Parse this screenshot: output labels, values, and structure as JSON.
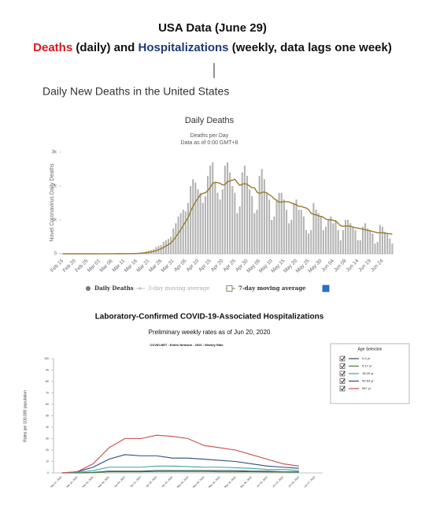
{
  "header": {
    "title": "USA Data (June 29)",
    "subtitle": [
      {
        "text": "Deaths",
        "color": "#d7191c"
      },
      {
        "text": " (daily) and ",
        "color": "#111111"
      },
      {
        "text": "Hospitalizations",
        "color": "#1f3a7a"
      },
      {
        "text": " (weekly, data lags one week)",
        "color": "#111111"
      }
    ]
  },
  "chart_data": [
    {
      "type": "bar",
      "section_title": "Daily New Deaths in the United States",
      "title": "Daily Deaths",
      "subtitle": "Deaths per Day",
      "note": "Data as of 0:00 GMT+8",
      "y_label": "Novel Coronavirus Daily Deaths",
      "ylim": [
        0,
        3000
      ],
      "yticks": [
        0,
        {
          "value": 1000,
          "label": "1k"
        },
        {
          "value": 2000,
          "label": "2k"
        },
        {
          "value": 3000,
          "label": "3k"
        }
      ],
      "categories": [
        "Feb 15",
        null,
        null,
        null,
        null,
        "Feb 20",
        null,
        null,
        null,
        null,
        "Feb 25",
        null,
        null,
        null,
        null,
        "Mar 01",
        null,
        null,
        null,
        null,
        "Mar 06",
        null,
        null,
        null,
        null,
        "Mar 11",
        null,
        null,
        null,
        null,
        "Mar 16",
        null,
        null,
        null,
        null,
        "Mar 21",
        null,
        null,
        null,
        null,
        "Mar 26",
        null,
        null,
        null,
        null,
        "Mar 31",
        null,
        null,
        null,
        null,
        "Apr 05",
        null,
        null,
        null,
        null,
        "Apr 10",
        null,
        null,
        null,
        null,
        "Apr 15",
        null,
        null,
        null,
        null,
        "Apr 20",
        null,
        null,
        null,
        null,
        "Apr 25",
        null,
        null,
        null,
        null,
        "Apr 30",
        null,
        null,
        null,
        null,
        "May 05",
        null,
        null,
        null,
        null,
        "May 10",
        null,
        null,
        null,
        null,
        "May 15",
        null,
        null,
        null,
        null,
        "May 20",
        null,
        null,
        null,
        null,
        "May 25",
        null,
        null,
        null,
        null,
        "May 30",
        null,
        null,
        null,
        null,
        "Jun 04",
        null,
        null,
        null,
        null,
        "Jun 09",
        null,
        null,
        null,
        null,
        "Jun 14",
        null,
        null,
        null,
        null,
        "Jun 19",
        null,
        null,
        null,
        null,
        "Jun 24",
        null,
        null,
        null,
        null
      ],
      "series": [
        {
          "name": "Daily Deaths",
          "mark": "bar",
          "color": "#b3b3b3",
          "values": [
            0,
            0,
            0,
            0,
            0,
            0,
            0,
            0,
            0,
            0,
            0,
            0,
            0,
            0,
            0,
            1,
            1,
            5,
            2,
            1,
            1,
            3,
            3,
            4,
            3,
            5,
            8,
            10,
            8,
            16,
            20,
            28,
            40,
            52,
            70,
            90,
            110,
            140,
            200,
            230,
            260,
            350,
            400,
            440,
            500,
            750,
            900,
            1100,
            1200,
            1300,
            1250,
            1500,
            2000,
            2200,
            2100,
            1900,
            1800,
            1500,
            1700,
            2300,
            2600,
            2700,
            2100,
            1800,
            1600,
            1900,
            2600,
            2700,
            2400,
            2000,
            1800,
            1200,
            1400,
            2400,
            2600,
            2300,
            1900,
            1700,
            1200,
            1300,
            2300,
            2500,
            2200,
            1800,
            1600,
            1000,
            1100,
            1600,
            1800,
            1800,
            1600,
            1300,
            900,
            1000,
            1500,
            1600,
            1300,
            1300,
            1100,
            700,
            600,
            700,
            1500,
            1300,
            1200,
            1100,
            700,
            800,
            1000,
            1100,
            900,
            1000,
            700,
            400,
            700,
            1000,
            1000,
            900,
            800,
            700,
            400,
            400,
            800,
            900,
            750,
            700,
            600,
            300,
            350,
            850,
            800,
            650,
            600,
            450,
            300
          ]
        },
        {
          "name": "3-day moving average",
          "mark": "line",
          "color": "#c8c8c8",
          "visible": false
        },
        {
          "name": "7-day moving average",
          "mark": "line",
          "color": "#9a7a2a",
          "visible": true,
          "values": [
            0,
            0,
            0,
            0,
            0,
            0,
            0,
            0,
            0,
            0,
            0,
            0,
            0,
            0,
            0,
            1,
            1,
            2,
            2,
            2,
            2,
            2,
            3,
            3,
            3,
            3,
            4,
            5,
            6,
            8,
            10,
            13,
            18,
            24,
            32,
            43,
            56,
            70,
            92,
            119,
            149,
            187,
            229,
            271,
            317,
            400,
            500,
            600,
            710,
            830,
            950,
            1070,
            1250,
            1400,
            1530,
            1640,
            1740,
            1780,
            1800,
            1860,
            1960,
            2080,
            2110,
            2100,
            2080,
            2030,
            2040,
            2130,
            2150,
            2170,
            2200,
            2100,
            2020,
            2050,
            2070,
            2050,
            2000,
            1950,
            1950,
            1820,
            1780,
            1810,
            1820,
            1800,
            1740,
            1700,
            1620,
            1580,
            1520,
            1530,
            1540,
            1540,
            1530,
            1500,
            1470,
            1450,
            1400,
            1400,
            1370,
            1350,
            1300,
            1200,
            1160,
            1150,
            1120,
            1100,
            1080,
            1020,
            1010,
            1000,
            990,
            960,
            900,
            830,
            810,
            820,
            820,
            810,
            790,
            770,
            760,
            740,
            730,
            710,
            690,
            680,
            660,
            640,
            620,
            620,
            620,
            610,
            600,
            590,
            580
          ]
        }
      ]
    },
    {
      "type": "line",
      "title": "Laboratory-Confirmed COVID-19-Associated Hospitalizations",
      "subtitle": "Preliminary weekly rates as of Jun 20, 2020",
      "plot_title": "COVID-NET : Entire Network : 2020 : Weekly Rate",
      "y_label": "Rates per 100,000 population",
      "legend_title": "Age Selection",
      "ylim": [
        0,
        100
      ],
      "yticks": [
        0,
        10,
        20,
        30,
        40,
        50,
        60,
        70,
        80,
        90,
        100
      ],
      "categories": [
        "Mar 07, 2020",
        "Mar 14, 2020",
        "Mar 21, 2020",
        "Mar 28, 2020",
        "Apr 04, 2020",
        "Apr 11, 2020",
        "Apr 18, 2020",
        "Apr 25, 2020",
        "May 02, 2020",
        "May 09, 2020",
        "May 16, 2020",
        "May 23, 2020",
        "May 30, 2020",
        "Jun 06, 2020",
        "Jun 13, 2020",
        "Jun 20, 2020",
        "Jun 27, 2020"
      ],
      "series": [
        {
          "name": "0-4 yr",
          "color": "#2f4f4f",
          "values": [
            0,
            0,
            0.5,
            1.5,
            1.5,
            1.5,
            2,
            2,
            2,
            2,
            2,
            2,
            1.5,
            1.5,
            1,
            1,
            null
          ]
        },
        {
          "name": "5-17 yr",
          "color": "#4a7a3a",
          "values": [
            0,
            0,
            0.3,
            1,
            1,
            1,
            1.2,
            1.2,
            1.2,
            1.2,
            1,
            1,
            1,
            0.8,
            0.8,
            0.6,
            null
          ]
        },
        {
          "name": "18-49 yr",
          "color": "#3aa6a6",
          "values": [
            0,
            0.5,
            2,
            5,
            5,
            5,
            6,
            6,
            5.5,
            5,
            5,
            4.5,
            4,
            3,
            3,
            2,
            null
          ]
        },
        {
          "name": "50-64 yr",
          "color": "#2d4a7a",
          "values": [
            0,
            1,
            5,
            12,
            16,
            15,
            15,
            13,
            13,
            12,
            11,
            10,
            8,
            6,
            5,
            4,
            null
          ]
        },
        {
          "name": "65+ yr",
          "color": "#c0504d",
          "values": [
            0,
            1,
            8,
            22,
            30,
            30,
            33,
            32,
            30,
            24,
            22,
            20,
            16,
            12,
            8,
            6,
            null
          ]
        }
      ]
    }
  ]
}
